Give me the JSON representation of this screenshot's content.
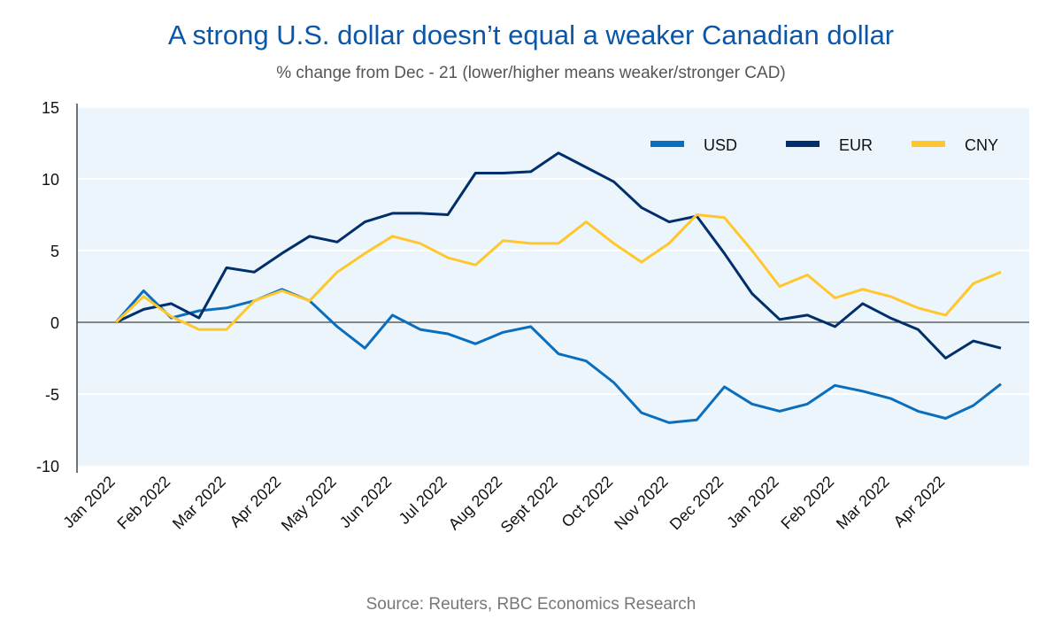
{
  "chart_data": {
    "type": "line",
    "title": "A strong U.S. dollar doesn’t equal a weaker Canadian dollar",
    "subtitle": "% change from Dec - 21 (lower/higher means weaker/stronger CAD)",
    "source": "Source: Reuters, RBC Economics Research",
    "xlabel": "",
    "ylabel": "",
    "ylim": [
      -10,
      15
    ],
    "y_ticks": [
      15,
      10,
      5,
      0,
      -5,
      -10
    ],
    "x_ticks": [
      "Jan 2022",
      "Feb 2022",
      "Mar 2022",
      "Apr 2022",
      "May 2022",
      "Jun 2022",
      "Jul 2022",
      "Aug 2022",
      "Sept 2022",
      "Oct 2022",
      "Nov 2022",
      "Dec 2022",
      "Jan 2022",
      "Feb 2022",
      "Mar 2022",
      "Apr 2022"
    ],
    "sampling": "twice monthly, starting at first tick",
    "grid": "horizontal",
    "legend_position": "top-right",
    "background_color": "#edf5fc",
    "series": [
      {
        "name": "USD",
        "color": "#0a6ebd",
        "values": [
          0,
          2.2,
          0.3,
          0.8,
          1.0,
          1.5,
          2.3,
          1.5,
          -0.3,
          -1.8,
          0.5,
          -0.5,
          -0.8,
          -1.5,
          -0.7,
          -0.3,
          -2.2,
          -2.7,
          -4.2,
          -6.3,
          -7.0,
          -6.8,
          -4.5,
          -5.7,
          -6.2,
          -5.7,
          -4.4,
          -4.8,
          -5.3,
          -6.2,
          -6.7,
          -5.8,
          -4.3
        ]
      },
      {
        "name": "EUR",
        "color": "#002f6c",
        "values": [
          0,
          0.9,
          1.3,
          0.3,
          3.8,
          3.5,
          4.8,
          6.0,
          5.6,
          7.0,
          7.6,
          7.6,
          7.5,
          10.4,
          10.4,
          10.5,
          11.8,
          10.8,
          9.8,
          8.0,
          7.0,
          7.4,
          4.8,
          2.0,
          0.2,
          0.5,
          -0.3,
          1.3,
          0.3,
          -0.5,
          -2.5,
          -1.3,
          -1.8
        ]
      },
      {
        "name": "CNY",
        "color": "#ffc72c",
        "values": [
          0,
          1.8,
          0.4,
          -0.5,
          -0.5,
          1.5,
          2.2,
          1.5,
          3.5,
          4.8,
          6.0,
          5.5,
          4.5,
          4.0,
          5.7,
          5.5,
          5.5,
          7.0,
          5.5,
          4.2,
          5.5,
          7.5,
          7.3,
          5.0,
          2.5,
          3.3,
          1.7,
          2.3,
          1.8,
          1.0,
          0.5,
          2.7,
          3.5
        ]
      }
    ]
  }
}
